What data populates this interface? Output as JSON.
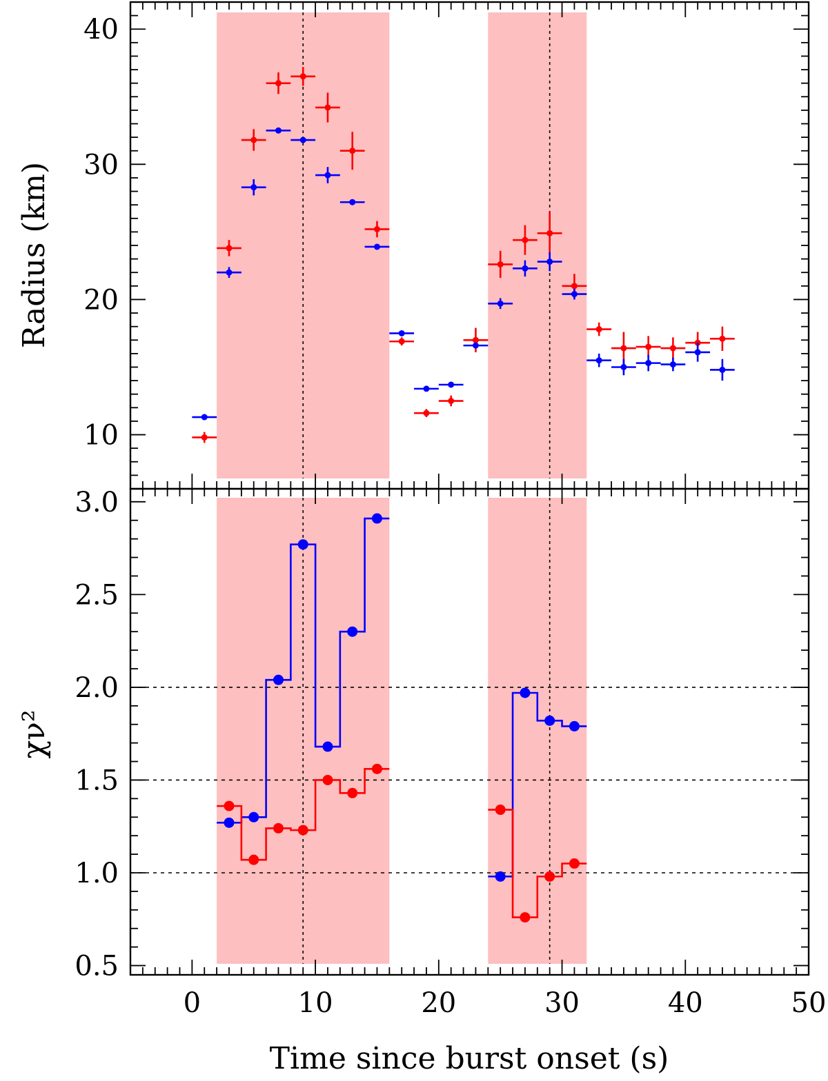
{
  "chart_data": [
    {
      "type": "scatter",
      "panel": "top",
      "ylabel": "Radius (km)",
      "xlim": [
        -5,
        50
      ],
      "ylim": [
        6,
        42
      ],
      "yticks": [
        "10",
        "20",
        "30",
        "40"
      ],
      "shaded_intervals": [
        [
          2,
          16
        ],
        [
          24,
          32
        ]
      ],
      "vertical_lines": [
        9,
        29
      ],
      "series": [
        {
          "name": "red",
          "color": "#ff0000",
          "points": [
            {
              "x": 1,
              "y": 9.8,
              "xerr": 1,
              "yerr": 0.4
            },
            {
              "x": 3,
              "y": 23.8,
              "xerr": 1,
              "yerr": 0.6
            },
            {
              "x": 5,
              "y": 31.8,
              "xerr": 1,
              "yerr": 0.8
            },
            {
              "x": 7,
              "y": 36.0,
              "xerr": 1,
              "yerr": 0.8
            },
            {
              "x": 9,
              "y": 36.5,
              "xerr": 1,
              "yerr": 0.7
            },
            {
              "x": 11,
              "y": 34.2,
              "xerr": 1,
              "yerr": 1.1
            },
            {
              "x": 13,
              "y": 31.0,
              "xerr": 1,
              "yerr": 1.4
            },
            {
              "x": 15,
              "y": 25.2,
              "xerr": 1,
              "yerr": 0.6
            },
            {
              "x": 17,
              "y": 16.9,
              "xerr": 1,
              "yerr": 0.3
            },
            {
              "x": 19,
              "y": 11.6,
              "xerr": 1,
              "yerr": 0.3
            },
            {
              "x": 21,
              "y": 12.5,
              "xerr": 1,
              "yerr": 0.4
            },
            {
              "x": 23,
              "y": 17.0,
              "xerr": 1,
              "yerr": 0.9
            },
            {
              "x": 25,
              "y": 22.6,
              "xerr": 1,
              "yerr": 1.0
            },
            {
              "x": 27,
              "y": 24.4,
              "xerr": 1,
              "yerr": 1.1
            },
            {
              "x": 29,
              "y": 24.9,
              "xerr": 1,
              "yerr": 1.6
            },
            {
              "x": 31,
              "y": 21.0,
              "xerr": 1,
              "yerr": 0.9
            },
            {
              "x": 33,
              "y": 17.8,
              "xerr": 1,
              "yerr": 0.5
            },
            {
              "x": 35,
              "y": 16.4,
              "xerr": 1,
              "yerr": 1.2
            },
            {
              "x": 37,
              "y": 16.5,
              "xerr": 1,
              "yerr": 0.8
            },
            {
              "x": 39,
              "y": 16.4,
              "xerr": 1,
              "yerr": 0.8
            },
            {
              "x": 41,
              "y": 16.8,
              "xerr": 1,
              "yerr": 0.8
            },
            {
              "x": 43,
              "y": 17.1,
              "xerr": 1,
              "yerr": 0.9
            }
          ]
        },
        {
          "name": "blue",
          "color": "#0000ff",
          "points": [
            {
              "x": 1,
              "y": 11.3,
              "xerr": 1,
              "yerr": 0.15
            },
            {
              "x": 3,
              "y": 22.0,
              "xerr": 1,
              "yerr": 0.4
            },
            {
              "x": 5,
              "y": 28.3,
              "xerr": 1,
              "yerr": 0.6
            },
            {
              "x": 7,
              "y": 32.5,
              "xerr": 1,
              "yerr": 0.15
            },
            {
              "x": 9,
              "y": 31.8,
              "xerr": 1,
              "yerr": 0.15
            },
            {
              "x": 11,
              "y": 29.2,
              "xerr": 1,
              "yerr": 0.6
            },
            {
              "x": 13,
              "y": 27.2,
              "xerr": 1,
              "yerr": 0.15
            },
            {
              "x": 15,
              "y": 23.9,
              "xerr": 1,
              "yerr": 0.15
            },
            {
              "x": 17,
              "y": 17.5,
              "xerr": 1,
              "yerr": 0.15
            },
            {
              "x": 19,
              "y": 13.4,
              "xerr": 1,
              "yerr": 0.15
            },
            {
              "x": 21,
              "y": 13.7,
              "xerr": 1,
              "yerr": 0.15
            },
            {
              "x": 23,
              "y": 16.6,
              "xerr": 1,
              "yerr": 0.15
            },
            {
              "x": 25,
              "y": 19.7,
              "xerr": 1,
              "yerr": 0.4
            },
            {
              "x": 27,
              "y": 22.3,
              "xerr": 1,
              "yerr": 0.6
            },
            {
              "x": 29,
              "y": 22.8,
              "xerr": 1,
              "yerr": 0.7
            },
            {
              "x": 31,
              "y": 20.4,
              "xerr": 1,
              "yerr": 0.4
            },
            {
              "x": 33,
              "y": 15.5,
              "xerr": 1,
              "yerr": 0.5
            },
            {
              "x": 35,
              "y": 15.0,
              "xerr": 1,
              "yerr": 0.6
            },
            {
              "x": 37,
              "y": 15.3,
              "xerr": 1,
              "yerr": 0.6
            },
            {
              "x": 39,
              "y": 15.2,
              "xerr": 1,
              "yerr": 0.5
            },
            {
              "x": 41,
              "y": 16.1,
              "xerr": 1,
              "yerr": 0.7
            },
            {
              "x": 43,
              "y": 14.8,
              "xerr": 1,
              "yerr": 0.8
            }
          ]
        }
      ]
    },
    {
      "type": "line",
      "panel": "bottom",
      "ylabel": "χν²",
      "xlabel": "Time since burst onset (s)",
      "xlim": [
        -5,
        50
      ],
      "ylim": [
        0.45,
        3.07
      ],
      "xticks": [
        "0",
        "10",
        "20",
        "30",
        "40",
        "50"
      ],
      "yticks": [
        "0.5",
        "1.0",
        "1.5",
        "2.0",
        "2.5",
        "3.0"
      ],
      "horizontal_lines": [
        1.0,
        1.5,
        2.0
      ],
      "shaded_intervals": [
        [
          2,
          16
        ],
        [
          24,
          32
        ]
      ],
      "vertical_lines": [
        9,
        29
      ],
      "series": [
        {
          "name": "blue",
          "color": "#0000ff",
          "segments": [
            {
              "x": [
                3,
                5,
                7,
                9,
                11,
                13,
                15
              ],
              "y": [
                1.27,
                1.3,
                2.04,
                2.77,
                1.68,
                2.3,
                2.91
              ]
            },
            {
              "x": [
                25,
                27,
                29,
                31
              ],
              "y": [
                0.98,
                1.97,
                1.82,
                1.79
              ]
            }
          ]
        },
        {
          "name": "red",
          "color": "#ff0000",
          "segments": [
            {
              "x": [
                3,
                5,
                7,
                9,
                11,
                13,
                15
              ],
              "y": [
                1.36,
                1.07,
                1.24,
                1.23,
                1.5,
                1.43,
                1.56
              ]
            },
            {
              "x": [
                25,
                27,
                29,
                31
              ],
              "y": [
                1.34,
                0.76,
                0.98,
                1.05
              ]
            }
          ]
        }
      ]
    }
  ]
}
